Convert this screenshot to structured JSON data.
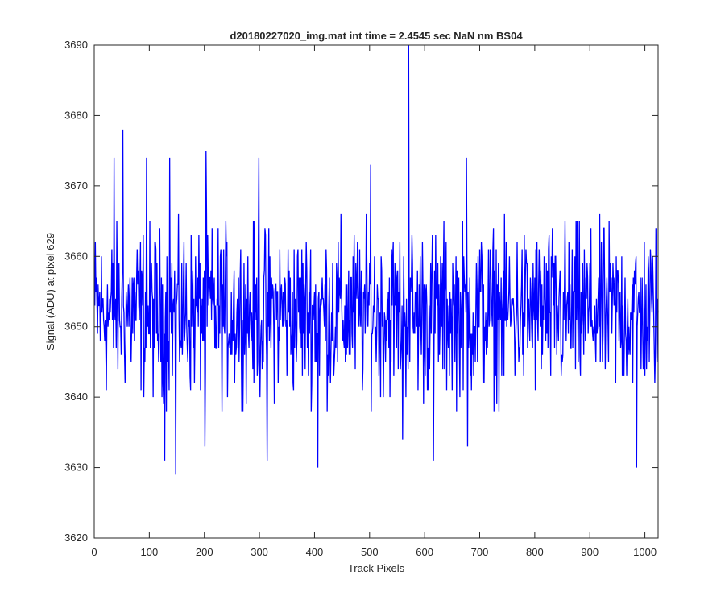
{
  "chart_data": {
    "type": "line",
    "title": "d20180227020_img.mat int time = 2.4545 sec  NaN nm BS04",
    "xlabel": "Track Pixels",
    "ylabel": "Signal (ADU) at pixel 629",
    "xlim": [
      0,
      1024
    ],
    "ylim": [
      3620,
      3690
    ],
    "xticks": [
      0,
      100,
      200,
      300,
      400,
      500,
      600,
      700,
      800,
      900,
      1000
    ],
    "yticks": [
      3620,
      3630,
      3640,
      3650,
      3660,
      3670,
      3680,
      3690
    ],
    "grid": false,
    "series": [
      {
        "color": "#0000ff",
        "x_start": 1,
        "x_step": 1,
        "n_points": 1024,
        "baseline": 3652,
        "noise_range": [
          3641,
          3663
        ],
        "values_estimated": true,
        "peaks": [
          {
            "x": 36,
            "y": 3674
          },
          {
            "x": 52,
            "y": 3678
          },
          {
            "x": 95,
            "y": 3674
          },
          {
            "x": 128,
            "y": 3631
          },
          {
            "x": 137,
            "y": 3674
          },
          {
            "x": 148,
            "y": 3629
          },
          {
            "x": 201,
            "y": 3633
          },
          {
            "x": 203,
            "y": 3675
          },
          {
            "x": 299,
            "y": 3674
          },
          {
            "x": 314,
            "y": 3631
          },
          {
            "x": 406,
            "y": 3630
          },
          {
            "x": 502,
            "y": 3673
          },
          {
            "x": 560,
            "y": 3634
          },
          {
            "x": 571,
            "y": 3690
          },
          {
            "x": 616,
            "y": 3631
          },
          {
            "x": 676,
            "y": 3674
          },
          {
            "x": 678,
            "y": 3633
          },
          {
            "x": 985,
            "y": 3630
          }
        ]
      }
    ]
  }
}
